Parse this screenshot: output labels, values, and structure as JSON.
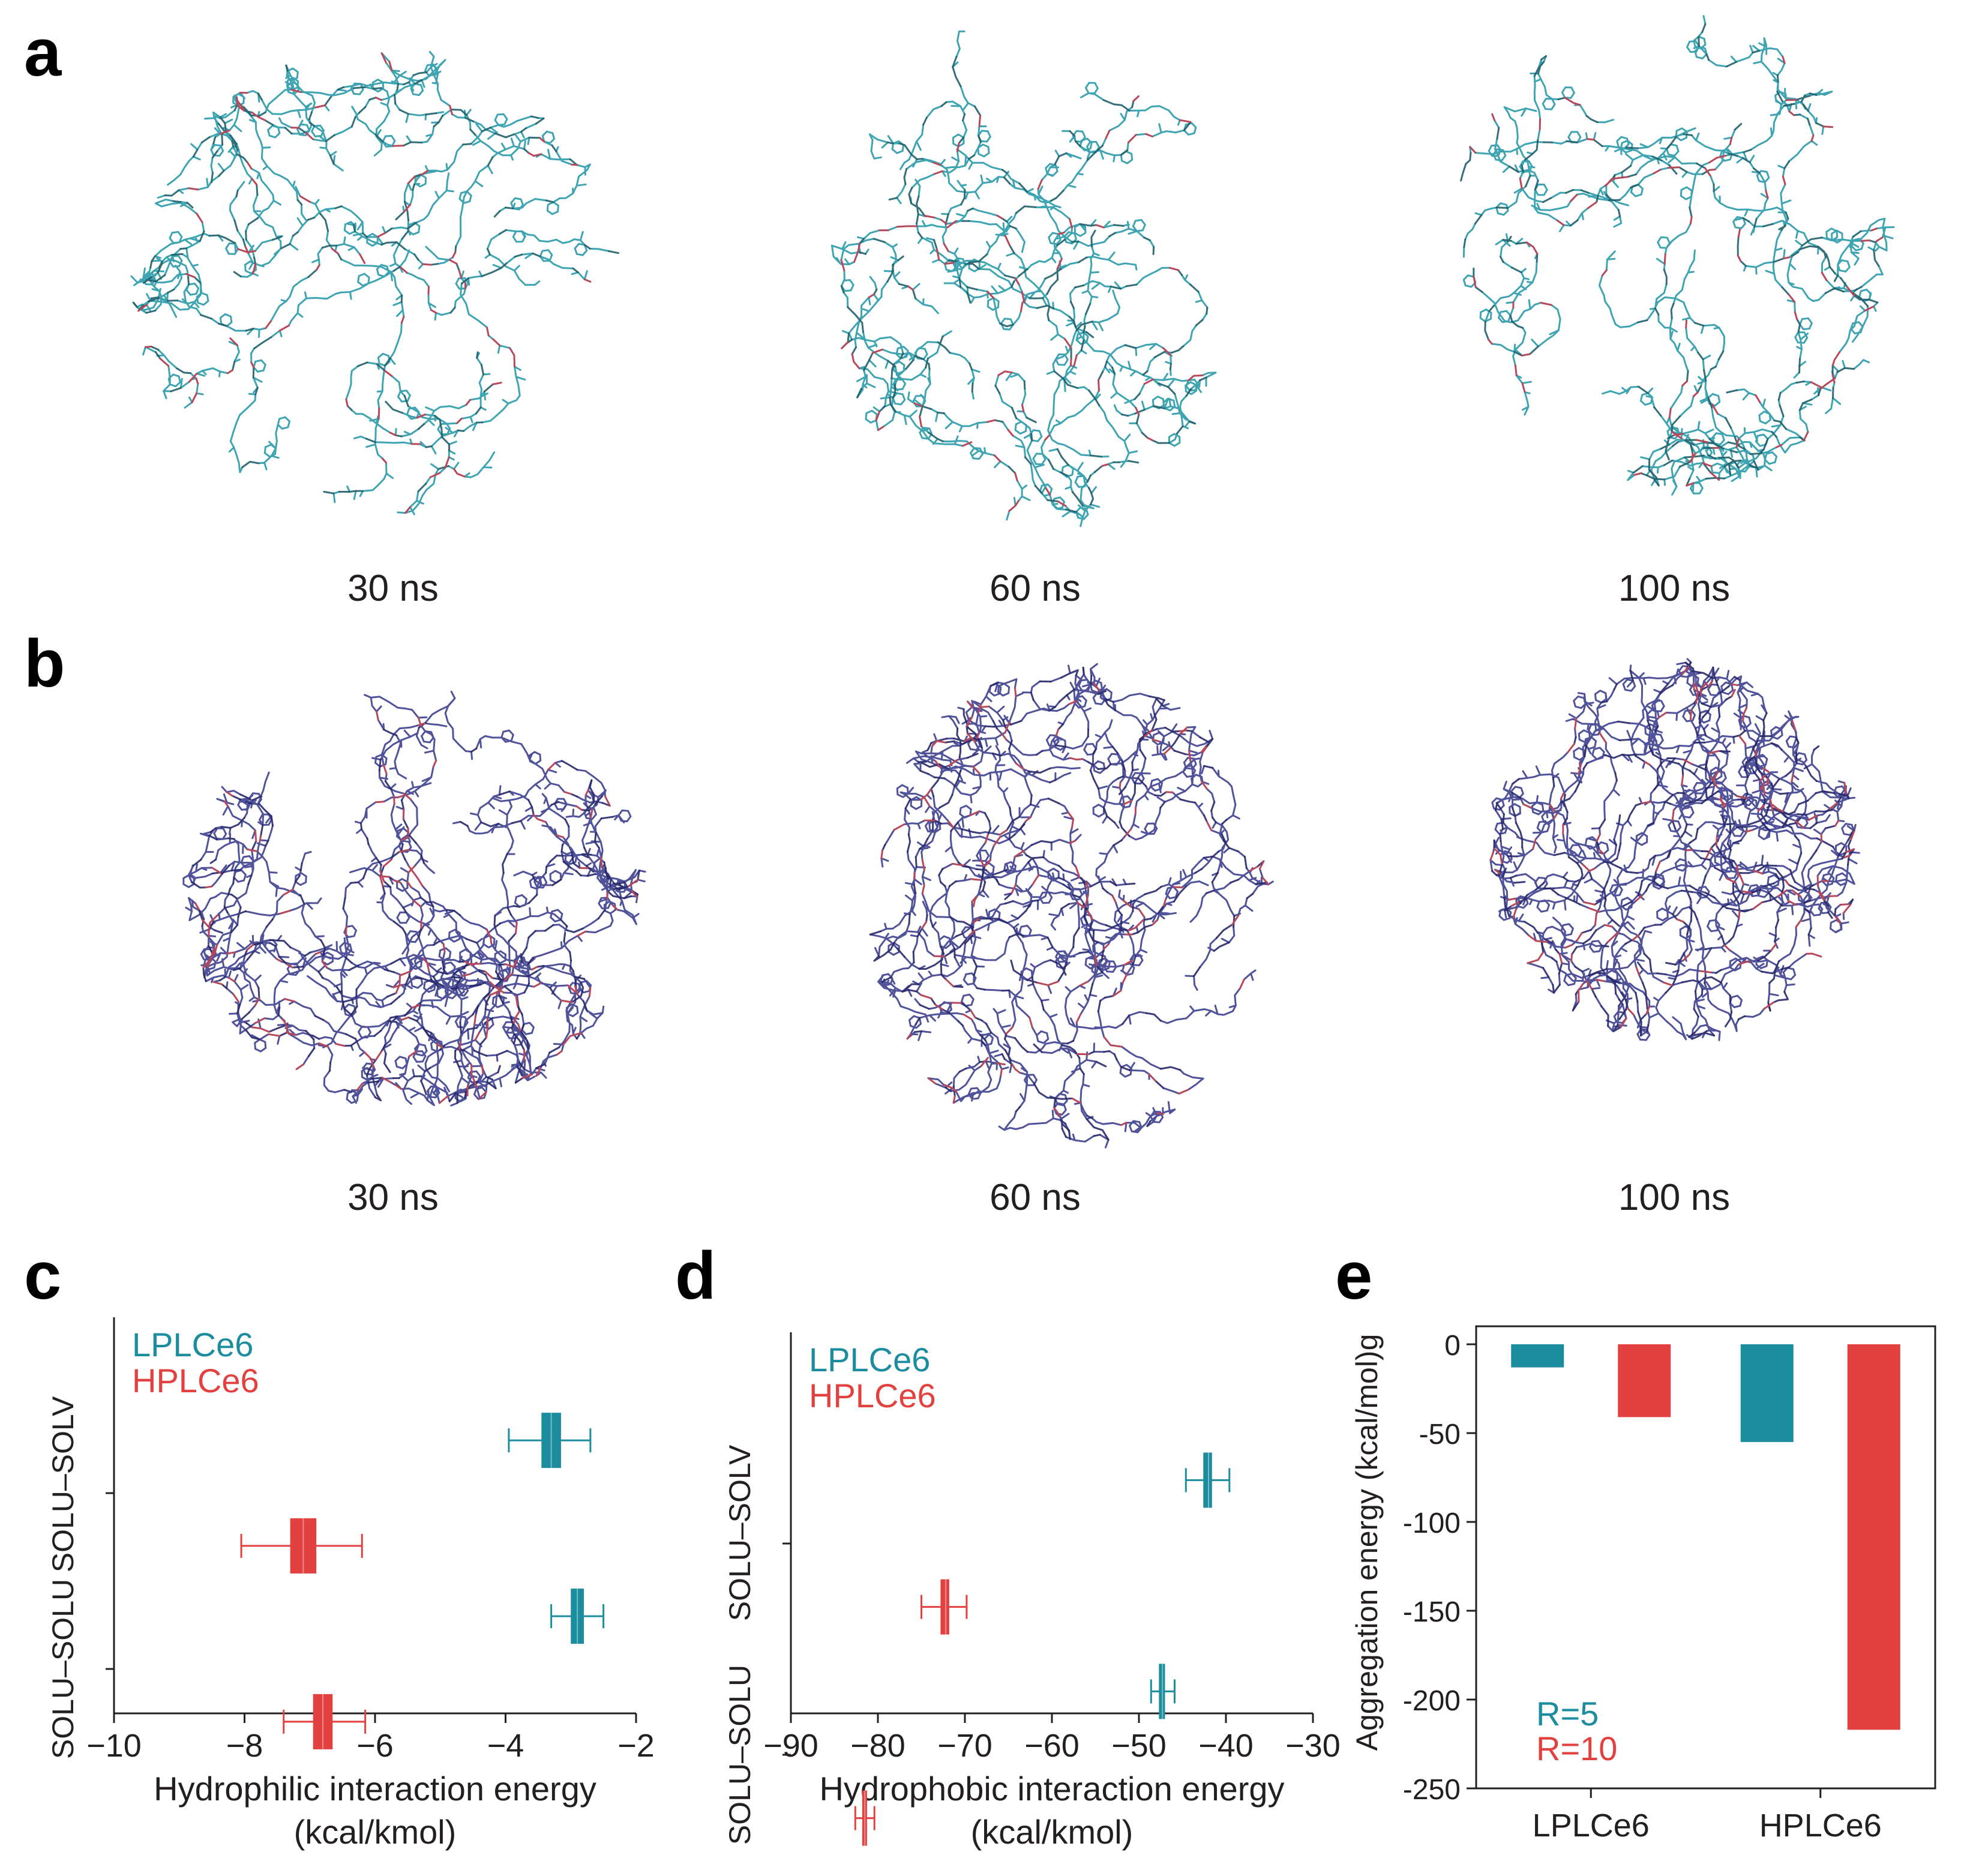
{
  "panels": {
    "a": {
      "letter": "a",
      "snapshots": [
        {
          "label": "30 ns"
        },
        {
          "label": "60 ns"
        },
        {
          "label": "100 ns"
        }
      ],
      "color": "#2a9aa8"
    },
    "b": {
      "letter": "b",
      "snapshots": [
        {
          "label": "30 ns"
        },
        {
          "label": "60 ns"
        },
        {
          "label": "100 ns"
        }
      ],
      "color": "#3d3f8f"
    },
    "c": {
      "letter": "c"
    },
    "d": {
      "letter": "d"
    },
    "e": {
      "letter": "e"
    }
  },
  "colors": {
    "teal": "#1b8d9e",
    "red": "#e2413f",
    "axis": "#231f20"
  },
  "chart_data": [
    {
      "id": "c",
      "type": "boxplot",
      "xlabel_lines": [
        "Hydrophilic interaction energy",
        "(kcal/kmol)"
      ],
      "xlim": [
        -10,
        -2
      ],
      "xticks": [
        -10,
        -8,
        -6,
        -4,
        -2
      ],
      "xtick_labels": [
        "−10",
        "−8",
        "−6",
        "−4",
        "−2"
      ],
      "categories": [
        "SOLU–SOLV",
        "SOLU–SOLU"
      ],
      "legend": [
        {
          "name": "LPLCe6",
          "color": "#1b8d9e"
        },
        {
          "name": "HPLCe6",
          "color": "#e2413f"
        }
      ],
      "boxes": [
        {
          "category": "SOLU–SOLV",
          "series": "LPLCe6",
          "color": "#1b8d9e",
          "offset": 0.7,
          "mean": -3.3,
          "q1": -3.45,
          "q3": -3.15,
          "min": -3.95,
          "max": -2.7
        },
        {
          "category": "SOLU–SOLV",
          "series": "HPLCe6",
          "color": "#e2413f",
          "offset": 1.3,
          "mean": -7.1,
          "q1": -7.3,
          "q3": -6.9,
          "min": -8.05,
          "max": -6.2
        },
        {
          "category": "SOLU–SOLU",
          "series": "LPLCe6",
          "color": "#1b8d9e",
          "offset": 1.7,
          "mean": -2.9,
          "q1": -3.0,
          "q3": -2.8,
          "min": -3.3,
          "max": -2.5
        },
        {
          "category": "SOLU–SOLU",
          "series": "HPLCe6",
          "color": "#e2413f",
          "offset": 2.3,
          "mean": -6.8,
          "q1": -6.95,
          "q3": -6.65,
          "min": -7.4,
          "max": -6.15
        }
      ]
    },
    {
      "id": "d",
      "type": "boxplot",
      "xlabel_lines": [
        "Hydrophobic interaction energy",
        "(kcal/kmol)"
      ],
      "xlim": [
        -90,
        -30
      ],
      "xticks": [
        -90,
        -80,
        -70,
        -60,
        -50,
        -40,
        -30
      ],
      "xtick_labels": [
        "−90",
        "−80",
        "−70",
        "−60",
        "−50",
        "−40",
        "−30"
      ],
      "categories": [
        "SOLU–SOLV",
        "SOLU–SOLU"
      ],
      "legend": [
        {
          "name": "LPLCe6",
          "color": "#1b8d9e"
        },
        {
          "name": "HPLCe6",
          "color": "#e2413f"
        }
      ],
      "boxes": [
        {
          "category": "SOLU–SOLV",
          "series": "LPLCe6",
          "color": "#1b8d9e",
          "offset": 0.7,
          "mean": -42.0,
          "q1": -42.6,
          "q3": -41.6,
          "min": -44.6,
          "max": -39.6
        },
        {
          "category": "SOLU–SOLV",
          "series": "HPLCe6",
          "color": "#e2413f",
          "offset": 1.3,
          "mean": -72.2,
          "q1": -72.8,
          "q3": -71.8,
          "min": -75.0,
          "max": -69.8
        },
        {
          "category": "SOLU–SOLU",
          "series": "LPLCe6",
          "color": "#1b8d9e",
          "offset": 1.7,
          "mean": -47.3,
          "q1": -47.7,
          "q3": -47.0,
          "min": -48.6,
          "max": -45.9
        },
        {
          "category": "SOLU–SOLU",
          "series": "HPLCe6",
          "color": "#e2413f",
          "offset": 2.3,
          "mean": -81.5,
          "q1": -81.8,
          "q3": -81.3,
          "min": -82.6,
          "max": -80.4
        }
      ]
    },
    {
      "id": "e",
      "type": "bar",
      "ylabel": "Aggregation energy (kcal/mol)g",
      "ylim": [
        -250,
        0
      ],
      "yticks": [
        0,
        -50,
        -100,
        -150,
        -200,
        -250
      ],
      "categories": [
        "LPLCe6",
        "HPLCe6"
      ],
      "series": [
        {
          "name": "R=5",
          "color": "#1b8d9e",
          "values": [
            -13,
            -55
          ]
        },
        {
          "name": "R=10",
          "color": "#e2413f",
          "values": [
            -41,
            -217
          ]
        }
      ]
    }
  ]
}
